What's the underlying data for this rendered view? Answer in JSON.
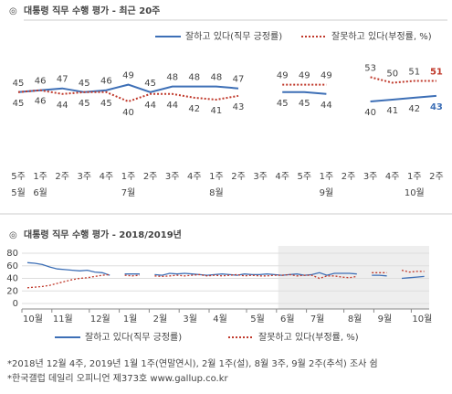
{
  "chart_data": [
    {
      "type": "line",
      "title": "대통령 직무 수행 평가 - 최근 20주",
      "categories": [
        "5주",
        "1주",
        "2주",
        "3주",
        "4주",
        "1주",
        "2주",
        "3주",
        "4주",
        "1주",
        "2주",
        "3주",
        "4주",
        "5주",
        "1주",
        "2주",
        "3주",
        "4주",
        "1주",
        "2주"
      ],
      "months": [
        "5월",
        "6월",
        null,
        null,
        null,
        "7월",
        null,
        null,
        null,
        "8월",
        null,
        null,
        null,
        null,
        "9월",
        null,
        null,
        null,
        "10월",
        null
      ],
      "series": [
        {
          "name": "잘하고 있다(직무 긍정률)",
          "color": "#3d6fb6",
          "values": [
            45,
            46,
            47,
            45,
            46,
            49,
            45,
            48,
            48,
            48,
            47,
            null,
            45,
            45,
            44,
            null,
            40,
            41,
            42,
            43
          ]
        },
        {
          "name": "잘못하고 있다(부정률, %)",
          "color": "#c0392b",
          "values": [
            45,
            46,
            44,
            45,
            45,
            40,
            44,
            44,
            42,
            41,
            43,
            null,
            49,
            49,
            49,
            null,
            53,
            50,
            51,
            51
          ]
        }
      ]
    },
    {
      "type": "line",
      "title": "대통령 직무 수행 평가 - 2018/2019년",
      "categories": [
        "10월",
        null,
        null,
        null,
        "11월",
        null,
        null,
        null,
        null,
        "12월",
        null,
        null,
        null,
        "1월",
        null,
        null,
        null,
        "2월",
        null,
        null,
        null,
        "3월",
        null,
        null,
        null,
        "4월",
        null,
        null,
        null,
        null,
        "5월",
        null,
        null,
        null,
        "6월",
        null,
        null,
        null,
        "7월",
        null,
        null,
        null,
        null,
        "8월",
        null,
        null,
        null,
        "9월",
        null,
        null,
        null,
        null,
        "10월",
        null
      ],
      "ylim": [
        0,
        80
      ],
      "yticks": [
        0,
        20,
        40,
        60,
        80
      ],
      "series": [
        {
          "name": "잘하고 있다(직무 긍정률)",
          "color": "#3d6fb6",
          "values": [
            65,
            64,
            62,
            58,
            55,
            54,
            53,
            52,
            53,
            50,
            49,
            45,
            null,
            47,
            47,
            47,
            null,
            46,
            45,
            48,
            47,
            48,
            47,
            46,
            45,
            46,
            47,
            46,
            45,
            47,
            46,
            46,
            47,
            46,
            45,
            46,
            47,
            45,
            46,
            49,
            45,
            48,
            48,
            48,
            47,
            null,
            45,
            45,
            44,
            null,
            40,
            41,
            42,
            43
          ]
        },
        {
          "name": "잘못하고 있다(부정률, %)",
          "color": "#c0392b",
          "values": [
            25,
            26,
            27,
            29,
            32,
            35,
            38,
            40,
            41,
            43,
            45,
            46,
            null,
            45,
            44,
            45,
            null,
            44,
            43,
            44,
            45,
            44,
            45,
            46,
            44,
            45,
            44,
            45,
            46,
            44,
            45,
            44,
            44,
            45,
            45,
            46,
            44,
            45,
            45,
            40,
            44,
            44,
            42,
            41,
            43,
            null,
            49,
            49,
            49,
            null,
            53,
            50,
            51,
            51
          ]
        }
      ]
    }
  ],
  "footnotes": [
    "*2018년 12월 4주, 2019년 1월 1주(연말연시), 2월 1주(설), 8월 3주, 9월 2주(추석) 조사 쉼",
    "*한국갤럽 데일리 오피니언 제373호 www.gallup.co.kr"
  ]
}
